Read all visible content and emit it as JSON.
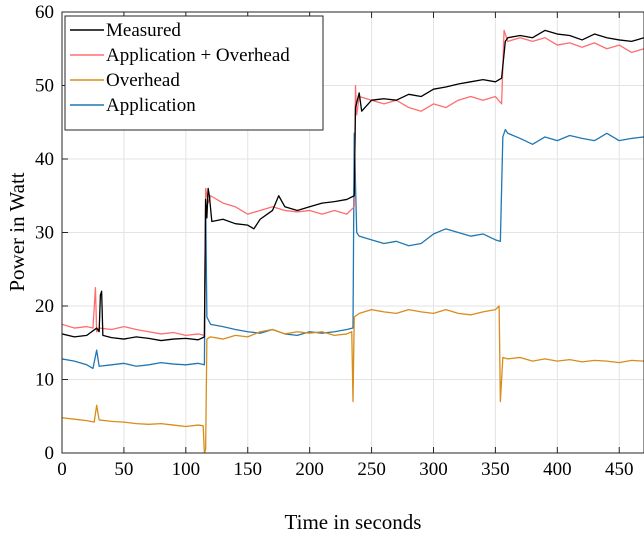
{
  "chart_data": {
    "type": "line",
    "title": "",
    "xlabel": "Time in seconds",
    "ylabel": "Power in Watt",
    "xlim": [
      0,
      470
    ],
    "ylim": [
      0,
      60
    ],
    "xticks": [
      0,
      50,
      100,
      150,
      200,
      250,
      300,
      350,
      400,
      450
    ],
    "yticks": [
      0,
      10,
      20,
      30,
      40,
      50,
      60
    ],
    "grid": true,
    "legend_position": "top-left",
    "series": [
      {
        "name": "Measured",
        "color": "#000000",
        "points": [
          [
            0,
            16.2
          ],
          [
            10,
            15.8
          ],
          [
            20,
            16.0
          ],
          [
            28,
            17.0
          ],
          [
            30,
            16.5
          ],
          [
            31,
            21.5
          ],
          [
            32,
            22.0
          ],
          [
            33,
            16.0
          ],
          [
            40,
            15.7
          ],
          [
            50,
            15.5
          ],
          [
            60,
            15.8
          ],
          [
            70,
            15.6
          ],
          [
            80,
            15.3
          ],
          [
            90,
            15.5
          ],
          [
            100,
            15.6
          ],
          [
            110,
            15.4
          ],
          [
            115,
            15.8
          ],
          [
            116,
            34.5
          ],
          [
            117,
            32.0
          ],
          [
            118,
            36.0
          ],
          [
            119,
            35.0
          ],
          [
            121,
            31.5
          ],
          [
            130,
            31.8
          ],
          [
            140,
            31.2
          ],
          [
            150,
            31.0
          ],
          [
            155,
            30.5
          ],
          [
            160,
            31.8
          ],
          [
            170,
            33.0
          ],
          [
            175,
            35.0
          ],
          [
            180,
            33.5
          ],
          [
            190,
            33.0
          ],
          [
            200,
            33.5
          ],
          [
            210,
            34.0
          ],
          [
            220,
            34.2
          ],
          [
            230,
            34.5
          ],
          [
            236,
            35.0
          ],
          [
            237,
            47.0
          ],
          [
            240,
            49.0
          ],
          [
            242,
            46.5
          ],
          [
            250,
            48.0
          ],
          [
            260,
            48.2
          ],
          [
            270,
            48.0
          ],
          [
            280,
            48.8
          ],
          [
            290,
            48.5
          ],
          [
            300,
            49.5
          ],
          [
            310,
            49.8
          ],
          [
            320,
            50.2
          ],
          [
            330,
            50.5
          ],
          [
            340,
            50.8
          ],
          [
            350,
            50.5
          ],
          [
            355,
            51.0
          ],
          [
            358,
            56.0
          ],
          [
            360,
            56.5
          ],
          [
            370,
            56.8
          ],
          [
            380,
            56.5
          ],
          [
            390,
            57.5
          ],
          [
            400,
            57.0
          ],
          [
            410,
            56.8
          ],
          [
            420,
            56.2
          ],
          [
            430,
            57.0
          ],
          [
            440,
            56.5
          ],
          [
            450,
            56.2
          ],
          [
            460,
            56.0
          ],
          [
            470,
            56.5
          ]
        ]
      },
      {
        "name": "Application + Overhead",
        "color": "#ff6e6e",
        "points": [
          [
            0,
            17.5
          ],
          [
            10,
            17.0
          ],
          [
            20,
            17.2
          ],
          [
            25,
            17.0
          ],
          [
            27,
            22.5
          ],
          [
            28,
            16.5
          ],
          [
            30,
            17.0
          ],
          [
            40,
            16.8
          ],
          [
            50,
            17.2
          ],
          [
            60,
            16.8
          ],
          [
            70,
            16.5
          ],
          [
            80,
            16.2
          ],
          [
            90,
            16.4
          ],
          [
            100,
            16.0
          ],
          [
            110,
            16.2
          ],
          [
            115,
            16.0
          ],
          [
            116,
            36.0
          ],
          [
            118,
            34.0
          ],
          [
            120,
            35.0
          ],
          [
            130,
            34.0
          ],
          [
            140,
            33.5
          ],
          [
            150,
            32.5
          ],
          [
            160,
            33.0
          ],
          [
            170,
            33.5
          ],
          [
            180,
            33.0
          ],
          [
            190,
            32.8
          ],
          [
            200,
            33.0
          ],
          [
            210,
            32.5
          ],
          [
            220,
            33.0
          ],
          [
            230,
            32.5
          ],
          [
            236,
            33.5
          ],
          [
            237,
            50.0
          ],
          [
            238,
            46.0
          ],
          [
            240,
            48.5
          ],
          [
            250,
            48.0
          ],
          [
            260,
            47.5
          ],
          [
            270,
            48.0
          ],
          [
            280,
            47.0
          ],
          [
            290,
            46.5
          ],
          [
            300,
            47.5
          ],
          [
            310,
            47.0
          ],
          [
            320,
            48.0
          ],
          [
            330,
            48.5
          ],
          [
            340,
            48.0
          ],
          [
            350,
            48.5
          ],
          [
            355,
            47.5
          ],
          [
            357,
            57.5
          ],
          [
            360,
            56.0
          ],
          [
            370,
            56.5
          ],
          [
            380,
            56.0
          ],
          [
            390,
            56.5
          ],
          [
            400,
            55.5
          ],
          [
            410,
            55.8
          ],
          [
            420,
            55.2
          ],
          [
            430,
            55.8
          ],
          [
            440,
            55.0
          ],
          [
            450,
            55.5
          ],
          [
            460,
            54.5
          ],
          [
            470,
            55.0
          ]
        ]
      },
      {
        "name": "Overhead",
        "color": "#d98c1a",
        "points": [
          [
            0,
            4.8
          ],
          [
            10,
            4.6
          ],
          [
            20,
            4.4
          ],
          [
            26,
            4.2
          ],
          [
            28,
            6.5
          ],
          [
            30,
            4.5
          ],
          [
            40,
            4.3
          ],
          [
            50,
            4.2
          ],
          [
            60,
            4.0
          ],
          [
            70,
            3.9
          ],
          [
            80,
            4.0
          ],
          [
            90,
            3.8
          ],
          [
            100,
            3.6
          ],
          [
            110,
            3.8
          ],
          [
            114,
            3.7
          ],
          [
            115,
            0.0
          ],
          [
            116,
            0.5
          ],
          [
            117,
            15.5
          ],
          [
            120,
            15.8
          ],
          [
            130,
            15.5
          ],
          [
            140,
            16.0
          ],
          [
            150,
            15.8
          ],
          [
            160,
            16.5
          ],
          [
            170,
            16.8
          ],
          [
            180,
            16.2
          ],
          [
            190,
            16.5
          ],
          [
            200,
            16.3
          ],
          [
            210,
            16.5
          ],
          [
            220,
            16.0
          ],
          [
            230,
            16.2
          ],
          [
            234,
            16.5
          ],
          [
            235,
            7.0
          ],
          [
            236,
            18.5
          ],
          [
            240,
            19.0
          ],
          [
            250,
            19.5
          ],
          [
            260,
            19.2
          ],
          [
            270,
            19.0
          ],
          [
            280,
            19.5
          ],
          [
            290,
            19.2
          ],
          [
            300,
            19.0
          ],
          [
            310,
            19.5
          ],
          [
            320,
            19.0
          ],
          [
            330,
            18.8
          ],
          [
            340,
            19.2
          ],
          [
            350,
            19.5
          ],
          [
            353,
            20.0
          ],
          [
            354,
            7.0
          ],
          [
            356,
            13.0
          ],
          [
            360,
            12.8
          ],
          [
            370,
            13.0
          ],
          [
            380,
            12.5
          ],
          [
            390,
            12.8
          ],
          [
            400,
            12.5
          ],
          [
            410,
            12.7
          ],
          [
            420,
            12.4
          ],
          [
            430,
            12.6
          ],
          [
            440,
            12.5
          ],
          [
            450,
            12.3
          ],
          [
            460,
            12.6
          ],
          [
            470,
            12.5
          ]
        ]
      },
      {
        "name": "Application",
        "color": "#1f77b4",
        "points": [
          [
            0,
            12.8
          ],
          [
            10,
            12.5
          ],
          [
            20,
            12.0
          ],
          [
            25,
            11.5
          ],
          [
            28,
            14.0
          ],
          [
            30,
            11.8
          ],
          [
            40,
            12.0
          ],
          [
            50,
            12.2
          ],
          [
            60,
            11.8
          ],
          [
            70,
            12.0
          ],
          [
            80,
            12.3
          ],
          [
            90,
            12.1
          ],
          [
            100,
            12.0
          ],
          [
            110,
            12.2
          ],
          [
            115,
            12.0
          ],
          [
            116,
            34.5
          ],
          [
            117,
            18.5
          ],
          [
            120,
            17.5
          ],
          [
            130,
            17.2
          ],
          [
            140,
            16.8
          ],
          [
            150,
            16.5
          ],
          [
            160,
            16.3
          ],
          [
            170,
            16.8
          ],
          [
            180,
            16.2
          ],
          [
            190,
            16.0
          ],
          [
            200,
            16.5
          ],
          [
            210,
            16.3
          ],
          [
            220,
            16.5
          ],
          [
            230,
            16.8
          ],
          [
            235,
            17.0
          ],
          [
            236,
            43.5
          ],
          [
            238,
            30.0
          ],
          [
            240,
            29.5
          ],
          [
            250,
            29.0
          ],
          [
            260,
            28.5
          ],
          [
            270,
            28.8
          ],
          [
            280,
            28.2
          ],
          [
            290,
            28.5
          ],
          [
            300,
            29.8
          ],
          [
            310,
            30.5
          ],
          [
            320,
            30.0
          ],
          [
            330,
            29.5
          ],
          [
            340,
            29.8
          ],
          [
            350,
            29.0
          ],
          [
            354,
            28.8
          ],
          [
            356,
            43.0
          ],
          [
            358,
            44.0
          ],
          [
            360,
            43.5
          ],
          [
            370,
            42.8
          ],
          [
            380,
            42.0
          ],
          [
            390,
            43.0
          ],
          [
            400,
            42.5
          ],
          [
            410,
            43.2
          ],
          [
            420,
            42.8
          ],
          [
            430,
            42.5
          ],
          [
            440,
            43.5
          ],
          [
            450,
            42.5
          ],
          [
            460,
            42.8
          ],
          [
            470,
            43.0
          ]
        ]
      }
    ]
  }
}
